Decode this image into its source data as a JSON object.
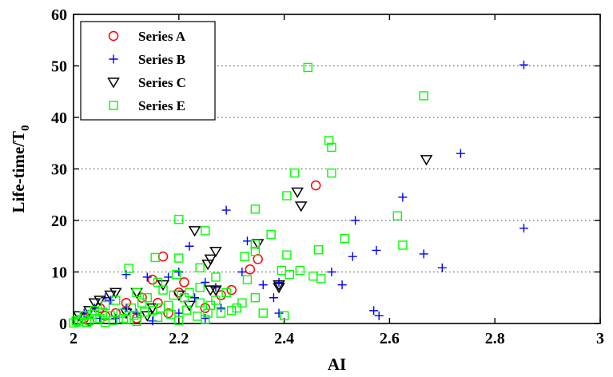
{
  "chart_data": {
    "type": "scatter",
    "title": "",
    "xlabel": "AI",
    "ylabel_main": "Life-time/T",
    "ylabel_sub": "0",
    "xlim": [
      2,
      3
    ],
    "ylim": [
      0,
      60
    ],
    "xticks": [
      2,
      2.2,
      2.4,
      2.6,
      2.8,
      3
    ],
    "xtick_labels": [
      "2",
      "2.2",
      "2.4",
      "2.6",
      "2.8",
      "3"
    ],
    "yticks": [
      0,
      10,
      20,
      30,
      40,
      50,
      60
    ],
    "ytick_labels": [
      "0",
      "10",
      "20",
      "30",
      "40",
      "50",
      "60"
    ],
    "grid": "y-dotted",
    "legend_position": "top-left",
    "series": [
      {
        "name": "Series A",
        "marker": "circle",
        "color": "#ff0000",
        "points": [
          [
            2.46,
            26.8
          ],
          [
            2.335,
            10.5
          ],
          [
            2.35,
            12.5
          ],
          [
            2.17,
            13.0
          ],
          [
            2.3,
            6.5
          ],
          [
            2.21,
            8.0
          ],
          [
            2.15,
            8.5
          ],
          [
            2.2,
            6.0
          ],
          [
            2.13,
            5.0
          ],
          [
            2.1,
            4.0
          ],
          [
            2.05,
            3.0
          ],
          [
            2.02,
            1.0
          ],
          [
            2.08,
            2.0
          ],
          [
            2.25,
            3.0
          ],
          [
            2.12,
            1.0
          ],
          [
            2.03,
            0.5
          ],
          [
            2.18,
            2.0
          ],
          [
            2.28,
            5.5
          ],
          [
            2.06,
            1.5
          ],
          [
            2.16,
            4.0
          ]
        ]
      },
      {
        "name": "Series B",
        "marker": "plus",
        "color": "#0000ff",
        "points": [
          [
            2.855,
            50.2
          ],
          [
            2.735,
            33.0
          ],
          [
            2.855,
            18.5
          ],
          [
            2.625,
            24.5
          ],
          [
            2.665,
            13.5
          ],
          [
            2.7,
            10.8
          ],
          [
            2.575,
            14.2
          ],
          [
            2.535,
            20.0
          ],
          [
            2.53,
            13.0
          ],
          [
            2.51,
            7.5
          ],
          [
            2.49,
            10.0
          ],
          [
            2.57,
            2.5
          ],
          [
            2.58,
            1.5
          ],
          [
            2.39,
            8.0
          ],
          [
            2.38,
            5.0
          ],
          [
            2.29,
            22.0
          ],
          [
            2.33,
            16.0
          ],
          [
            2.36,
            7.5
          ],
          [
            2.39,
            2.0
          ],
          [
            2.25,
            8.0
          ],
          [
            2.2,
            10.0
          ],
          [
            2.18,
            9.0
          ],
          [
            2.14,
            9.0
          ],
          [
            2.1,
            9.5
          ],
          [
            2.06,
            5.0
          ],
          [
            2.04,
            3.0
          ],
          [
            2.02,
            2.0
          ],
          [
            2.08,
            1.0
          ],
          [
            2.1,
            3.0
          ],
          [
            2.12,
            2.0
          ],
          [
            2.2,
            2.0
          ],
          [
            2.23,
            5.0
          ],
          [
            2.28,
            3.0
          ],
          [
            2.32,
            10.0
          ],
          [
            2.25,
            1.0
          ],
          [
            2.15,
            0.5
          ],
          [
            2.22,
            15.0
          ],
          [
            2.27,
            7.0
          ],
          [
            2.05,
            1.0
          ],
          [
            2.07,
            4.5
          ]
        ]
      },
      {
        "name": "Series C",
        "marker": "triangle-down",
        "color": "#000000",
        "points": [
          [
            2.67,
            31.8
          ],
          [
            2.425,
            25.5
          ],
          [
            2.432,
            22.8
          ],
          [
            2.35,
            15.5
          ],
          [
            2.23,
            18.0
          ],
          [
            2.27,
            14.0
          ],
          [
            2.26,
            12.5
          ],
          [
            2.255,
            11.5
          ],
          [
            2.26,
            6.5
          ],
          [
            2.27,
            6.5
          ],
          [
            2.39,
            7.5
          ],
          [
            2.39,
            7.0
          ],
          [
            2.22,
            3.5
          ],
          [
            2.17,
            7.5
          ],
          [
            2.12,
            6.0
          ],
          [
            2.07,
            5.5
          ],
          [
            2.04,
            4.0
          ],
          [
            2.03,
            2.5
          ],
          [
            2.1,
            2.0
          ],
          [
            2.15,
            3.0
          ],
          [
            2.2,
            5.5
          ],
          [
            2.08,
            6.0
          ],
          [
            2.05,
            4.5
          ],
          [
            2.01,
            1.5
          ],
          [
            2.14,
            1.5
          ]
        ]
      },
      {
        "name": "Series E",
        "marker": "square",
        "color": "#00ff00",
        "points": [
          [
            2.445,
            49.7
          ],
          [
            2.665,
            44.2
          ],
          [
            2.485,
            35.5
          ],
          [
            2.49,
            34.2
          ],
          [
            2.49,
            29.2
          ],
          [
            2.42,
            29.2
          ],
          [
            2.405,
            24.8
          ],
          [
            2.615,
            20.9
          ],
          [
            2.345,
            22.2
          ],
          [
            2.2,
            20.2
          ],
          [
            2.25,
            18.0
          ],
          [
            2.375,
            17.3
          ],
          [
            2.515,
            16.5
          ],
          [
            2.625,
            15.2
          ],
          [
            2.345,
            15.4
          ],
          [
            2.345,
            14.0
          ],
          [
            2.465,
            14.3
          ],
          [
            2.405,
            13.3
          ],
          [
            2.325,
            13.0
          ],
          [
            2.155,
            12.8
          ],
          [
            2.2,
            12.7
          ],
          [
            2.105,
            10.7
          ],
          [
            2.24,
            10.8
          ],
          [
            2.195,
            9.5
          ],
          [
            2.16,
            8.0
          ],
          [
            2.27,
            9.0
          ],
          [
            2.33,
            8.5
          ],
          [
            2.395,
            10.3
          ],
          [
            2.43,
            10.3
          ],
          [
            2.41,
            9.5
          ],
          [
            2.455,
            9.2
          ],
          [
            2.47,
            8.7
          ],
          [
            2.345,
            5.0
          ],
          [
            2.32,
            4.0
          ],
          [
            2.3,
            2.5
          ],
          [
            2.28,
            2.0
          ],
          [
            2.26,
            3.5
          ],
          [
            2.24,
            4.0
          ],
          [
            2.21,
            5.0
          ],
          [
            2.18,
            3.5
          ],
          [
            2.15,
            2.5
          ],
          [
            2.13,
            4.0
          ],
          [
            2.11,
            3.0
          ],
          [
            2.09,
            2.0
          ],
          [
            2.07,
            1.5
          ],
          [
            2.05,
            1.0
          ],
          [
            2.03,
            0.6
          ],
          [
            2.01,
            0.3
          ],
          [
            2.02,
            1.5
          ],
          [
            2.04,
            2.5
          ],
          [
            2.06,
            3.5
          ],
          [
            2.08,
            4.5
          ],
          [
            2.12,
            6.0
          ],
          [
            2.14,
            5.0
          ],
          [
            2.17,
            6.5
          ],
          [
            2.19,
            5.5
          ],
          [
            2.22,
            6.0
          ],
          [
            2.24,
            7.0
          ],
          [
            2.27,
            4.5
          ],
          [
            2.29,
            6.0
          ],
          [
            2.31,
            3.0
          ],
          [
            2.36,
            2.0
          ],
          [
            2.4,
            1.5
          ],
          [
            2.1,
            0.8
          ],
          [
            2.16,
            1.2
          ],
          [
            2.2,
            0.6
          ],
          [
            2.25,
            0.8
          ],
          [
            2.06,
            0.2
          ],
          [
            2.12,
            0.4
          ],
          [
            2.0,
            0.1
          ],
          [
            2.015,
            0.8
          ],
          [
            2.035,
            1.8
          ],
          [
            2.055,
            2.2
          ],
          [
            2.075,
            0.6
          ],
          [
            2.095,
            1.0
          ],
          [
            2.115,
            1.6
          ],
          [
            2.135,
            2.2
          ],
          [
            2.165,
            3.0
          ],
          [
            2.185,
            1.8
          ],
          [
            2.215,
            2.6
          ],
          [
            2.235,
            1.4
          ],
          [
            2.255,
            2.0
          ],
          [
            2.005,
            0.5
          ],
          [
            2.025,
            0.2
          ],
          [
            2.045,
            0.9
          ]
        ]
      }
    ]
  }
}
